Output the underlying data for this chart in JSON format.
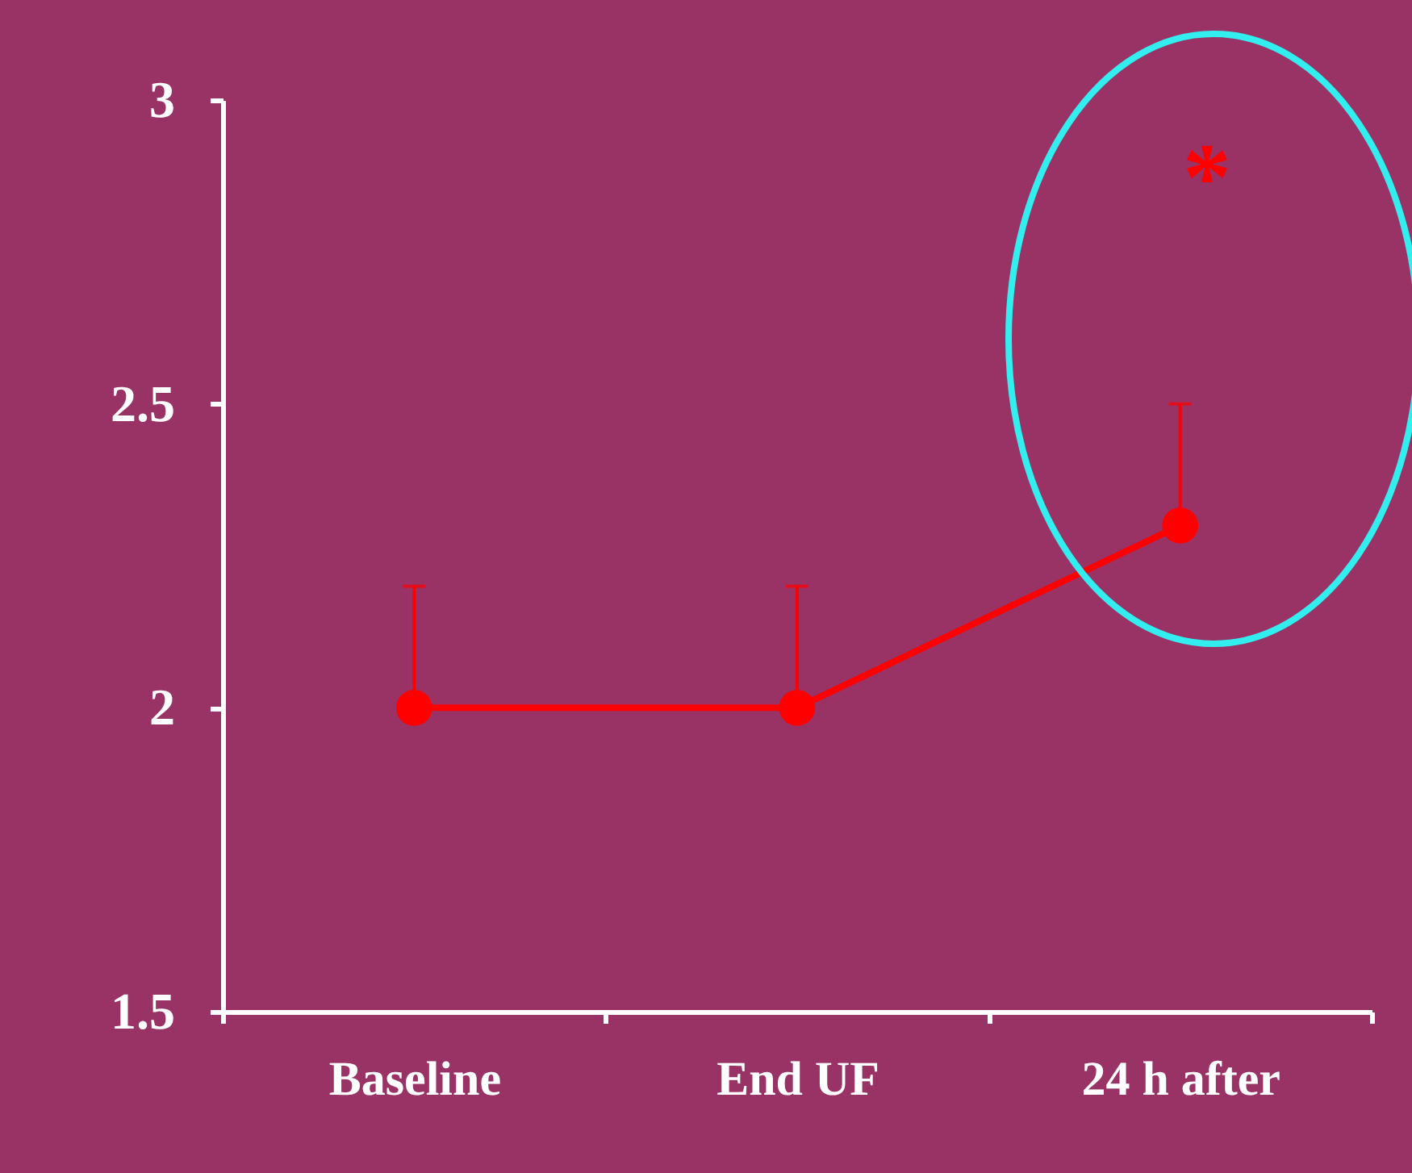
{
  "chart_data": {
    "type": "line",
    "categories": [
      "Baseline",
      "End UF",
      "24 h after"
    ],
    "values": [
      2,
      2,
      2.3
    ],
    "errors": [
      [
        2,
        2.2
      ],
      [
        2,
        2.2
      ],
      [
        2.3,
        2.5
      ]
    ],
    "color": "#ff0000",
    "ylim": [
      1.5,
      3
    ],
    "yticks": [
      1.5,
      2,
      2.5,
      3
    ],
    "annotations": [
      "*"
    ],
    "marker": "circle",
    "grid": false
  }
}
